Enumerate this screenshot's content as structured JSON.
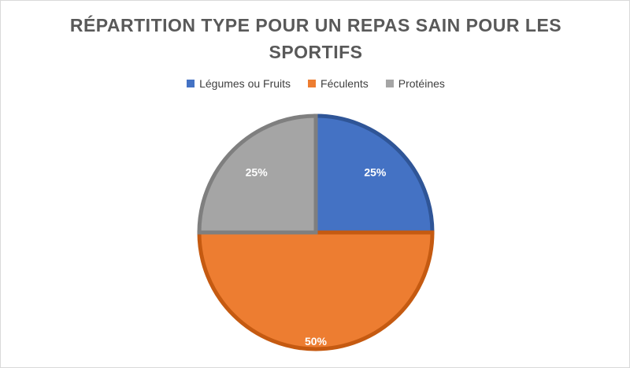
{
  "chart_data": {
    "type": "pie",
    "title": "RÉPARTITION TYPE POUR UN REPAS SAIN POUR LES SPORTIFS",
    "legend_position": "top",
    "categories": [
      "Légumes ou Fruits",
      "Féculents",
      "Protéines"
    ],
    "values": [
      25,
      50,
      25
    ],
    "labels": [
      "25%",
      "50%",
      "25%"
    ],
    "colors": [
      "#4472c4",
      "#ed7d31",
      "#a5a5a5"
    ],
    "edge_colors": [
      "#2f5597",
      "#c55a11",
      "#7f7f7f"
    ],
    "start_angle_deg": 0,
    "direction": "clockwise"
  }
}
